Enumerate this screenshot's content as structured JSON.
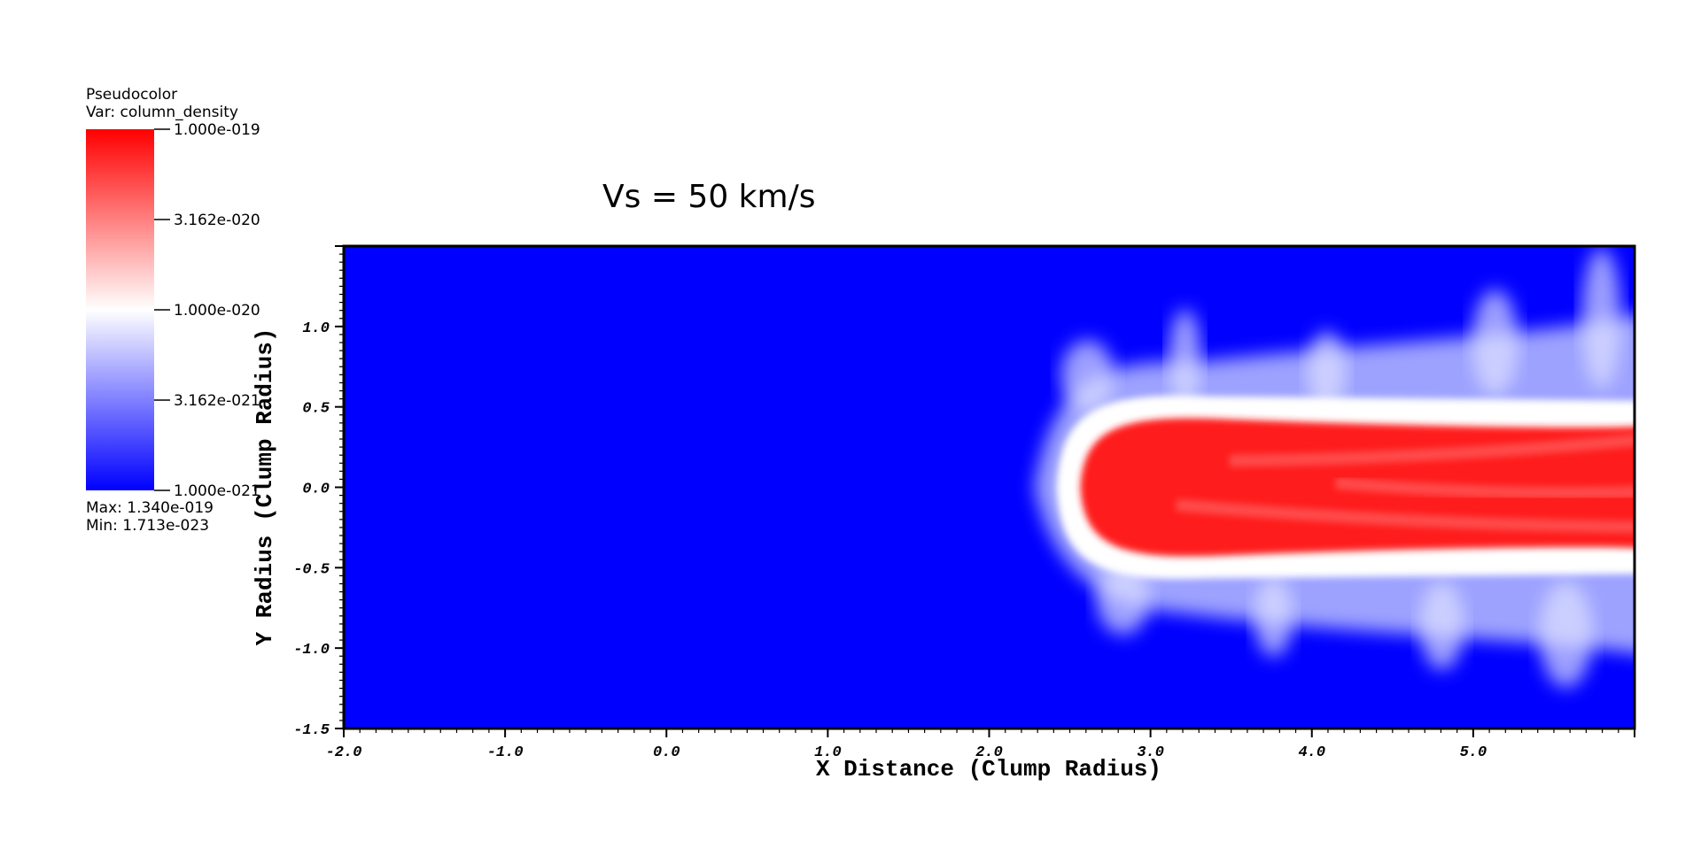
{
  "chart_data": {
    "type": "heatmap",
    "title": "Vs = 50 km/s",
    "xlabel": "X Distance (Clump Radius)",
    "ylabel": "Y Radius (Clump Radius)",
    "xlim": [
      -2.0,
      6.0
    ],
    "ylim": [
      -1.5,
      1.5
    ],
    "x_ticks": [
      -2.0,
      -1.0,
      0.0,
      1.0,
      2.0,
      3.0,
      4.0,
      5.0
    ],
    "x_tick_labels": [
      "-2.0",
      "-1.0",
      "0.0",
      "1.0",
      "2.0",
      "3.0",
      "4.0",
      "5.0"
    ],
    "y_ticks": [
      1.0,
      0.5,
      0.0,
      -0.5,
      -1.0,
      -1.5
    ],
    "y_tick_labels": [
      "1.0",
      "0.5",
      "0.0",
      "-0.5",
      "-1.0",
      "-1.5"
    ],
    "legend": {
      "plot_type": "Pseudocolor",
      "variable": "Var: column_density",
      "scale": "log",
      "levels": [
        1e-19,
        3.162e-20,
        1e-20,
        3.162e-21,
        1e-21
      ],
      "level_labels": [
        "1.000e-019",
        "3.162e-020",
        "1.000e-020",
        "3.162e-021",
        "1.000e-021"
      ],
      "max_text": "Max:  1.340e-019",
      "min_text": "Min:  1.713e-023",
      "colors": {
        "high": "#ff0000",
        "mid": "#ffffff",
        "low": "#0000ff"
      }
    },
    "feature": {
      "description_free": true,
      "head_x": 2.5,
      "tail_x": 6.0,
      "core_half_width": 0.4,
      "mixing_half_width": 0.75
    }
  }
}
